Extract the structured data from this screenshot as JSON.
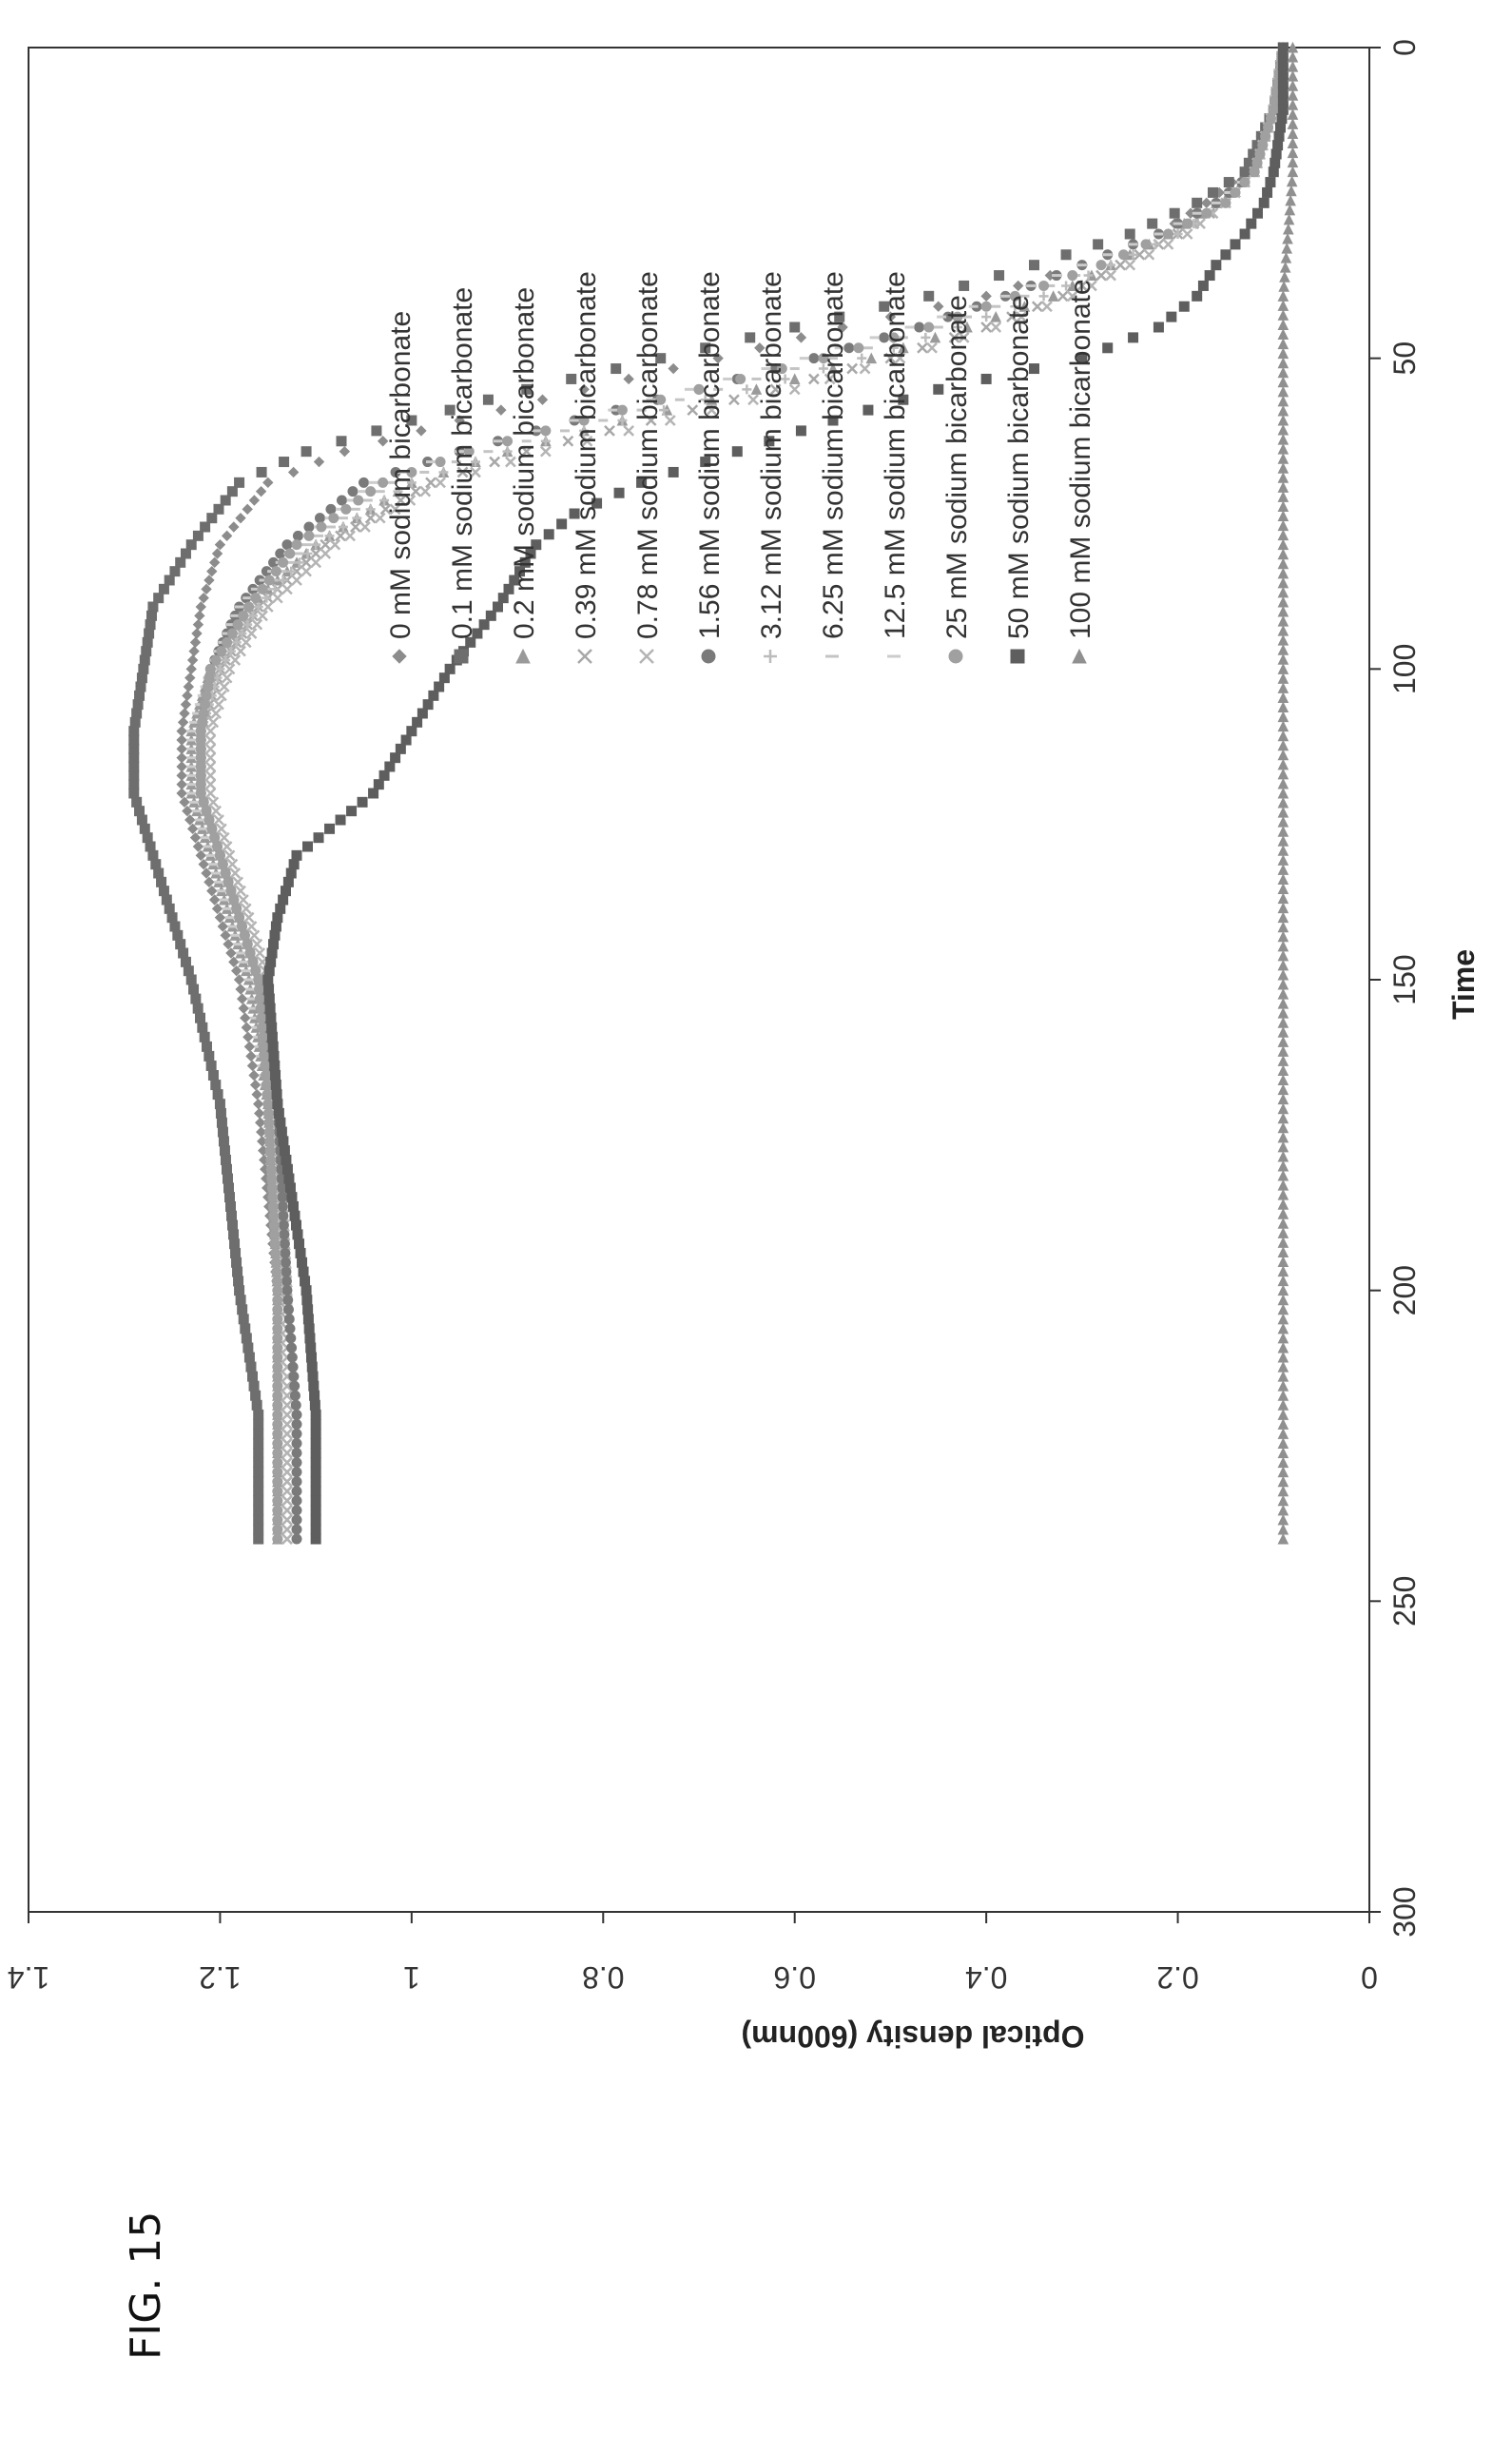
{
  "figure_label": "FIG. 15",
  "chart_data": {
    "type": "scatter",
    "title": "",
    "xlabel": "Time",
    "ylabel": "Optical density (600nm)",
    "xlim": [
      0,
      300
    ],
    "ylim": [
      0,
      1.4
    ],
    "x_ticks": [
      "0",
      "50",
      "100",
      "150",
      "200",
      "250",
      "300"
    ],
    "y_ticks": [
      "0",
      "0.2",
      "0.4",
      "0.6",
      "0.8",
      "1",
      "1.2",
      "1.4"
    ],
    "grid": false,
    "legend_position": "top-right",
    "series": [
      {
        "name": "0 mM sodium bicarbonate",
        "marker": "diamond",
        "color": "#8c8c8c",
        "points": [
          [
            0,
            0.09
          ],
          [
            10,
            0.1
          ],
          [
            20,
            0.13
          ],
          [
            25,
            0.17
          ],
          [
            30,
            0.22
          ],
          [
            35,
            0.3
          ],
          [
            40,
            0.4
          ],
          [
            45,
            0.55
          ],
          [
            50,
            0.68
          ],
          [
            55,
            0.82
          ],
          [
            60,
            0.95
          ],
          [
            65,
            1.07
          ],
          [
            70,
            1.15
          ],
          [
            80,
            1.2
          ],
          [
            90,
            1.22
          ],
          [
            100,
            1.23
          ],
          [
            110,
            1.24
          ],
          [
            120,
            1.24
          ],
          [
            130,
            1.22
          ],
          [
            140,
            1.2
          ],
          [
            150,
            1.18
          ],
          [
            170,
            1.16
          ],
          [
            200,
            1.14
          ],
          [
            220,
            1.14
          ],
          [
            240,
            1.14
          ]
        ]
      },
      {
        "name": "0.1 mM sodium bicarbonate",
        "marker": "square",
        "color": "#6e6e6e",
        "points": [
          [
            0,
            0.09
          ],
          [
            10,
            0.1
          ],
          [
            20,
            0.13
          ],
          [
            25,
            0.18
          ],
          [
            30,
            0.25
          ],
          [
            35,
            0.35
          ],
          [
            40,
            0.46
          ],
          [
            45,
            0.6
          ],
          [
            50,
            0.74
          ],
          [
            55,
            0.88
          ],
          [
            60,
            1.0
          ],
          [
            65,
            1.11
          ],
          [
            70,
            1.18
          ],
          [
            80,
            1.23
          ],
          [
            90,
            1.27
          ],
          [
            100,
            1.28
          ],
          [
            110,
            1.29
          ],
          [
            120,
            1.29
          ],
          [
            130,
            1.27
          ],
          [
            140,
            1.25
          ],
          [
            150,
            1.23
          ],
          [
            170,
            1.2
          ],
          [
            200,
            1.18
          ],
          [
            220,
            1.16
          ],
          [
            240,
            1.16
          ]
        ]
      },
      {
        "name": "0.2 mM sodium bicarbonate",
        "marker": "triangle",
        "color": "#9a9a9a",
        "points": [
          [
            0,
            0.09
          ],
          [
            10,
            0.1
          ],
          [
            20,
            0.12
          ],
          [
            25,
            0.16
          ],
          [
            30,
            0.21
          ],
          [
            35,
            0.27
          ],
          [
            40,
            0.33
          ],
          [
            45,
            0.42
          ],
          [
            50,
            0.52
          ],
          [
            55,
            0.64
          ],
          [
            60,
            0.78
          ],
          [
            65,
            0.9
          ],
          [
            70,
            1.0
          ],
          [
            80,
            1.1
          ],
          [
            90,
            1.17
          ],
          [
            100,
            1.21
          ],
          [
            110,
            1.23
          ],
          [
            120,
            1.23
          ],
          [
            130,
            1.21
          ],
          [
            140,
            1.19
          ],
          [
            150,
            1.17
          ],
          [
            170,
            1.15
          ],
          [
            200,
            1.14
          ],
          [
            220,
            1.14
          ],
          [
            240,
            1.14
          ]
        ]
      },
      {
        "name": "0.39 mM sodium bicarbonate",
        "marker": "x",
        "color": "#a8a8a8",
        "points": [
          [
            0,
            0.09
          ],
          [
            10,
            0.1
          ],
          [
            20,
            0.12
          ],
          [
            25,
            0.15
          ],
          [
            30,
            0.2
          ],
          [
            35,
            0.26
          ],
          [
            40,
            0.32
          ],
          [
            45,
            0.4
          ],
          [
            50,
            0.5
          ],
          [
            55,
            0.62
          ],
          [
            60,
            0.75
          ],
          [
            65,
            0.88
          ],
          [
            70,
            0.98
          ],
          [
            80,
            1.09
          ],
          [
            90,
            1.16
          ],
          [
            100,
            1.2
          ],
          [
            110,
            1.22
          ],
          [
            120,
            1.22
          ],
          [
            130,
            1.2
          ],
          [
            140,
            1.18
          ],
          [
            150,
            1.16
          ],
          [
            170,
            1.14
          ],
          [
            200,
            1.13
          ],
          [
            220,
            1.13
          ],
          [
            240,
            1.13
          ]
        ]
      },
      {
        "name": "0.78 mM sodium bicarbonate",
        "marker": "x",
        "color": "#b4b4b4",
        "points": [
          [
            0,
            0.09
          ],
          [
            10,
            0.1
          ],
          [
            20,
            0.12
          ],
          [
            25,
            0.15
          ],
          [
            30,
            0.19
          ],
          [
            35,
            0.25
          ],
          [
            40,
            0.31
          ],
          [
            45,
            0.39
          ],
          [
            50,
            0.49
          ],
          [
            55,
            0.6
          ],
          [
            60,
            0.73
          ],
          [
            65,
            0.86
          ],
          [
            70,
            0.97
          ],
          [
            80,
            1.08
          ],
          [
            90,
            1.15
          ],
          [
            100,
            1.19
          ],
          [
            110,
            1.21
          ],
          [
            120,
            1.21
          ],
          [
            130,
            1.19
          ],
          [
            140,
            1.17
          ],
          [
            150,
            1.15
          ],
          [
            170,
            1.14
          ],
          [
            200,
            1.13
          ],
          [
            220,
            1.13
          ],
          [
            240,
            1.13
          ]
        ]
      },
      {
        "name": "1.56 mM sodium bicarbonate",
        "marker": "circle",
        "color": "#7a7a7a",
        "points": [
          [
            0,
            0.09
          ],
          [
            10,
            0.1
          ],
          [
            20,
            0.12
          ],
          [
            25,
            0.16
          ],
          [
            30,
            0.22
          ],
          [
            35,
            0.3
          ],
          [
            40,
            0.38
          ],
          [
            45,
            0.47
          ],
          [
            50,
            0.58
          ],
          [
            55,
            0.7
          ],
          [
            60,
            0.83
          ],
          [
            65,
            0.95
          ],
          [
            70,
            1.05
          ],
          [
            80,
            1.13
          ],
          [
            90,
            1.18
          ],
          [
            100,
            1.21
          ],
          [
            110,
            1.22
          ],
          [
            120,
            1.22
          ],
          [
            130,
            1.2
          ],
          [
            140,
            1.18
          ],
          [
            150,
            1.16
          ],
          [
            170,
            1.14
          ],
          [
            200,
            1.13
          ],
          [
            220,
            1.12
          ],
          [
            240,
            1.12
          ]
        ]
      },
      {
        "name": "3.12 mM sodium bicarbonate",
        "marker": "plus",
        "color": "#bcbcbc",
        "points": [
          [
            0,
            0.09
          ],
          [
            10,
            0.1
          ],
          [
            20,
            0.12
          ],
          [
            25,
            0.15
          ],
          [
            30,
            0.2
          ],
          [
            35,
            0.27
          ],
          [
            40,
            0.34
          ],
          [
            45,
            0.43
          ],
          [
            50,
            0.53
          ],
          [
            55,
            0.65
          ],
          [
            60,
            0.78
          ],
          [
            65,
            0.9
          ],
          [
            70,
            1.0
          ],
          [
            80,
            1.1
          ],
          [
            90,
            1.16
          ],
          [
            100,
            1.2
          ],
          [
            110,
            1.22
          ],
          [
            120,
            1.22
          ],
          [
            130,
            1.2
          ],
          [
            140,
            1.18
          ],
          [
            150,
            1.16
          ],
          [
            170,
            1.15
          ],
          [
            200,
            1.14
          ],
          [
            220,
            1.14
          ],
          [
            240,
            1.14
          ]
        ]
      },
      {
        "name": "6.25 mM sodium bicarbonate",
        "marker": "dash",
        "color": "#c4c4c4",
        "points": [
          [
            0,
            0.09
          ],
          [
            10,
            0.1
          ],
          [
            20,
            0.12
          ],
          [
            25,
            0.15
          ],
          [
            30,
            0.21
          ],
          [
            35,
            0.28
          ],
          [
            40,
            0.36
          ],
          [
            45,
            0.45
          ],
          [
            50,
            0.56
          ],
          [
            55,
            0.68
          ],
          [
            60,
            0.8
          ],
          [
            65,
            0.92
          ],
          [
            70,
            1.02
          ],
          [
            80,
            1.11
          ],
          [
            90,
            1.17
          ],
          [
            100,
            1.21
          ],
          [
            110,
            1.22
          ],
          [
            120,
            1.22
          ],
          [
            130,
            1.2
          ],
          [
            140,
            1.18
          ],
          [
            150,
            1.16
          ],
          [
            170,
            1.15
          ],
          [
            200,
            1.14
          ],
          [
            220,
            1.14
          ],
          [
            240,
            1.14
          ]
        ]
      },
      {
        "name": "12.5 mM sodium bicarbonate",
        "marker": "dash",
        "color": "#cccccc",
        "points": [
          [
            0,
            0.09
          ],
          [
            10,
            0.1
          ],
          [
            20,
            0.12
          ],
          [
            25,
            0.16
          ],
          [
            30,
            0.22
          ],
          [
            35,
            0.3
          ],
          [
            40,
            0.38
          ],
          [
            45,
            0.48
          ],
          [
            50,
            0.59
          ],
          [
            55,
            0.71
          ],
          [
            60,
            0.83
          ],
          [
            65,
            0.95
          ],
          [
            70,
            1.04
          ],
          [
            80,
            1.12
          ],
          [
            90,
            1.18
          ],
          [
            100,
            1.21
          ],
          [
            110,
            1.23
          ],
          [
            120,
            1.23
          ],
          [
            130,
            1.21
          ],
          [
            140,
            1.19
          ],
          [
            150,
            1.17
          ],
          [
            170,
            1.15
          ],
          [
            200,
            1.14
          ],
          [
            220,
            1.14
          ],
          [
            240,
            1.14
          ]
        ]
      },
      {
        "name": "25 mM sodium bicarbonate",
        "marker": "circle",
        "color": "#a0a0a0",
        "points": [
          [
            0,
            0.09
          ],
          [
            10,
            0.1
          ],
          [
            20,
            0.12
          ],
          [
            25,
            0.15
          ],
          [
            30,
            0.21
          ],
          [
            35,
            0.28
          ],
          [
            40,
            0.37
          ],
          [
            45,
            0.46
          ],
          [
            50,
            0.57
          ],
          [
            55,
            0.7
          ],
          [
            60,
            0.82
          ],
          [
            65,
            0.94
          ],
          [
            70,
            1.03
          ],
          [
            80,
            1.12
          ],
          [
            90,
            1.17
          ],
          [
            100,
            1.21
          ],
          [
            110,
            1.22
          ],
          [
            120,
            1.22
          ],
          [
            130,
            1.2
          ],
          [
            140,
            1.18
          ],
          [
            150,
            1.16
          ],
          [
            170,
            1.15
          ],
          [
            200,
            1.14
          ],
          [
            220,
            1.14
          ],
          [
            240,
            1.14
          ]
        ]
      },
      {
        "name": "50 mM sodium bicarbonate",
        "marker": "square",
        "color": "#5e5e5e",
        "points": [
          [
            0,
            0.09
          ],
          [
            10,
            0.09
          ],
          [
            20,
            0.1
          ],
          [
            25,
            0.11
          ],
          [
            30,
            0.13
          ],
          [
            35,
            0.16
          ],
          [
            40,
            0.18
          ],
          [
            45,
            0.22
          ],
          [
            50,
            0.3
          ],
          [
            55,
            0.45
          ],
          [
            60,
            0.56
          ],
          [
            65,
            0.66
          ],
          [
            70,
            0.76
          ],
          [
            75,
            0.83
          ],
          [
            80,
            0.87
          ],
          [
            90,
            0.91
          ],
          [
            100,
            0.96
          ],
          [
            110,
            1.0
          ],
          [
            120,
            1.04
          ],
          [
            130,
            1.12
          ],
          [
            140,
            1.14
          ],
          [
            150,
            1.15
          ],
          [
            170,
            1.14
          ],
          [
            200,
            1.11
          ],
          [
            220,
            1.1
          ],
          [
            240,
            1.1
          ]
        ]
      },
      {
        "name": "100 mM sodium bicarbonate",
        "marker": "triangle",
        "color": "#909090",
        "points": [
          [
            0,
            0.08
          ],
          [
            20,
            0.08
          ],
          [
            40,
            0.09
          ],
          [
            60,
            0.09
          ],
          [
            80,
            0.09
          ],
          [
            100,
            0.09
          ],
          [
            120,
            0.09
          ],
          [
            140,
            0.09
          ],
          [
            160,
            0.09
          ],
          [
            180,
            0.09
          ],
          [
            200,
            0.09
          ],
          [
            220,
            0.09
          ],
          [
            240,
            0.09
          ]
        ]
      }
    ]
  }
}
